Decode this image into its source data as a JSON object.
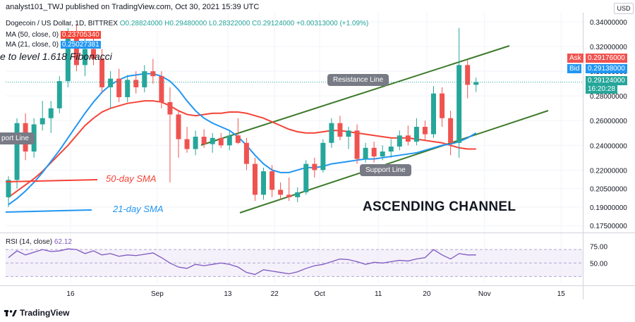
{
  "header": {
    "publisher": "analyst101_TWJ published on TradingView.com, Oct 30, 2021 15:39 UTC",
    "currency_button": "USD"
  },
  "symbol_line": {
    "name": "Dogecoin / US Dollar, 1D, BITTREX",
    "open": "O0.28824000",
    "high": "H0.29480000",
    "low": "L0.28322000",
    "close": "C0.29124000",
    "change": "+0.00313000 (+1.09%)"
  },
  "indicators": {
    "ma50": {
      "label": "MA (50, close, 0)",
      "value": "0.23705340",
      "color": "#f44336"
    },
    "ma21": {
      "label": "MA (21, close, 0)",
      "value": "0.25027381",
      "color": "#2196f3"
    },
    "rsi": {
      "label": "RSI (14, close)",
      "value": "62.12",
      "color": "#7e57c2"
    }
  },
  "price_tags": {
    "ask_label": "Ask",
    "ask_value": "0.29176000",
    "bid_label": "Bid",
    "bid_value": "0.29138000",
    "last_value": "0.29124000",
    "countdown": "16:20:28"
  },
  "annotations": {
    "fib_text": "e to level 1.618 Fibonacci",
    "resistance": "Resistance Line",
    "support_left": "port Line",
    "support": "Support Line",
    "sma50": "50-day SMA",
    "sma21": "21-day SMA",
    "channel": "ASCENDING CHANNEL"
  },
  "brand": {
    "logo_text": "TradingView"
  },
  "colors": {
    "up": "#26a69a",
    "down": "#ef5350",
    "channel": "#3d7a2a",
    "rsi": "#7e57c2",
    "sma50": "#f44336",
    "sma21": "#2196f3"
  },
  "chart_data": {
    "type": "candlestick",
    "price_axis_ticks": [
      "0.34000000",
      "0.32000000",
      "0.30000000",
      "0.28000000",
      "0.26000000",
      "0.24000000",
      "0.22000000",
      "0.20500000",
      "0.19000000",
      "0.17500000"
    ],
    "rsi_axis_ticks": [
      "75.00",
      "50.00"
    ],
    "x_axis_ticks": [
      "16",
      "Sep",
      "13",
      "22",
      "Oct",
      "11",
      "20",
      "Nov",
      "15"
    ],
    "candles": [
      {
        "o": 0.198,
        "h": 0.215,
        "l": 0.19,
        "c": 0.212
      },
      {
        "o": 0.212,
        "h": 0.262,
        "l": 0.205,
        "c": 0.258
      },
      {
        "o": 0.258,
        "h": 0.266,
        "l": 0.228,
        "c": 0.235
      },
      {
        "o": 0.235,
        "h": 0.262,
        "l": 0.23,
        "c": 0.257
      },
      {
        "o": 0.257,
        "h": 0.276,
        "l": 0.252,
        "c": 0.262
      },
      {
        "o": 0.262,
        "h": 0.276,
        "l": 0.25,
        "c": 0.27
      },
      {
        "o": 0.27,
        "h": 0.296,
        "l": 0.266,
        "c": 0.292
      },
      {
        "o": 0.292,
        "h": 0.335,
        "l": 0.287,
        "c": 0.327
      },
      {
        "o": 0.327,
        "h": 0.338,
        "l": 0.3,
        "c": 0.305
      },
      {
        "o": 0.305,
        "h": 0.332,
        "l": 0.296,
        "c": 0.318
      },
      {
        "o": 0.318,
        "h": 0.329,
        "l": 0.305,
        "c": 0.31
      },
      {
        "o": 0.31,
        "h": 0.318,
        "l": 0.282,
        "c": 0.287
      },
      {
        "o": 0.287,
        "h": 0.3,
        "l": 0.27,
        "c": 0.294
      },
      {
        "o": 0.294,
        "h": 0.302,
        "l": 0.275,
        "c": 0.279
      },
      {
        "o": 0.279,
        "h": 0.297,
        "l": 0.275,
        "c": 0.293
      },
      {
        "o": 0.293,
        "h": 0.3,
        "l": 0.282,
        "c": 0.287
      },
      {
        "o": 0.287,
        "h": 0.305,
        "l": 0.283,
        "c": 0.3
      },
      {
        "o": 0.3,
        "h": 0.31,
        "l": 0.29,
        "c": 0.296
      },
      {
        "o": 0.296,
        "h": 0.3,
        "l": 0.27,
        "c": 0.275
      },
      {
        "o": 0.275,
        "h": 0.287,
        "l": 0.21,
        "c": 0.265
      },
      {
        "o": 0.265,
        "h": 0.268,
        "l": 0.23,
        "c": 0.245
      },
      {
        "o": 0.245,
        "h": 0.255,
        "l": 0.234,
        "c": 0.237
      },
      {
        "o": 0.237,
        "h": 0.252,
        "l": 0.232,
        "c": 0.247
      },
      {
        "o": 0.247,
        "h": 0.253,
        "l": 0.238,
        "c": 0.241
      },
      {
        "o": 0.241,
        "h": 0.25,
        "l": 0.234,
        "c": 0.246
      },
      {
        "o": 0.246,
        "h": 0.25,
        "l": 0.238,
        "c": 0.24
      },
      {
        "o": 0.24,
        "h": 0.252,
        "l": 0.236,
        "c": 0.248
      },
      {
        "o": 0.248,
        "h": 0.262,
        "l": 0.241,
        "c": 0.242
      },
      {
        "o": 0.242,
        "h": 0.246,
        "l": 0.22,
        "c": 0.225
      },
      {
        "o": 0.225,
        "h": 0.23,
        "l": 0.195,
        "c": 0.2
      },
      {
        "o": 0.2,
        "h": 0.222,
        "l": 0.196,
        "c": 0.219
      },
      {
        "o": 0.219,
        "h": 0.224,
        "l": 0.198,
        "c": 0.204
      },
      {
        "o": 0.204,
        "h": 0.21,
        "l": 0.196,
        "c": 0.2
      },
      {
        "o": 0.2,
        "h": 0.214,
        "l": 0.195,
        "c": 0.198
      },
      {
        "o": 0.198,
        "h": 0.206,
        "l": 0.194,
        "c": 0.202
      },
      {
        "o": 0.202,
        "h": 0.228,
        "l": 0.2,
        "c": 0.225
      },
      {
        "o": 0.225,
        "h": 0.23,
        "l": 0.214,
        "c": 0.22
      },
      {
        "o": 0.22,
        "h": 0.245,
        "l": 0.218,
        "c": 0.242
      },
      {
        "o": 0.242,
        "h": 0.262,
        "l": 0.238,
        "c": 0.258
      },
      {
        "o": 0.258,
        "h": 0.264,
        "l": 0.244,
        "c": 0.247
      },
      {
        "o": 0.247,
        "h": 0.255,
        "l": 0.237,
        "c": 0.252
      },
      {
        "o": 0.252,
        "h": 0.257,
        "l": 0.225,
        "c": 0.229
      },
      {
        "o": 0.229,
        "h": 0.242,
        "l": 0.226,
        "c": 0.238
      },
      {
        "o": 0.238,
        "h": 0.243,
        "l": 0.226,
        "c": 0.231
      },
      {
        "o": 0.231,
        "h": 0.24,
        "l": 0.228,
        "c": 0.235
      },
      {
        "o": 0.235,
        "h": 0.245,
        "l": 0.23,
        "c": 0.239
      },
      {
        "o": 0.239,
        "h": 0.252,
        "l": 0.236,
        "c": 0.248
      },
      {
        "o": 0.248,
        "h": 0.256,
        "l": 0.24,
        "c": 0.243
      },
      {
        "o": 0.243,
        "h": 0.262,
        "l": 0.24,
        "c": 0.255
      },
      {
        "o": 0.255,
        "h": 0.26,
        "l": 0.244,
        "c": 0.249
      },
      {
        "o": 0.249,
        "h": 0.288,
        "l": 0.246,
        "c": 0.282
      },
      {
        "o": 0.282,
        "h": 0.287,
        "l": 0.255,
        "c": 0.262
      },
      {
        "o": 0.262,
        "h": 0.268,
        "l": 0.232,
        "c": 0.242
      },
      {
        "o": 0.242,
        "h": 0.335,
        "l": 0.23,
        "c": 0.305
      },
      {
        "o": 0.305,
        "h": 0.309,
        "l": 0.278,
        "c": 0.289
      },
      {
        "o": 0.289,
        "h": 0.2948,
        "l": 0.28322,
        "c": 0.29124
      }
    ],
    "ma50": [
      0.198,
      0.203,
      0.208,
      0.213,
      0.219,
      0.226,
      0.233,
      0.24,
      0.248,
      0.256,
      0.262,
      0.267,
      0.27,
      0.272,
      0.274,
      0.275,
      0.276,
      0.276,
      0.275,
      0.272,
      0.268,
      0.265,
      0.264,
      0.265,
      0.266,
      0.266,
      0.267,
      0.267,
      0.266,
      0.264,
      0.262,
      0.259,
      0.256,
      0.253,
      0.251,
      0.25,
      0.25,
      0.251,
      0.252,
      0.252,
      0.251,
      0.25,
      0.249,
      0.248,
      0.247,
      0.246,
      0.246,
      0.246,
      0.245,
      0.244,
      0.243,
      0.242,
      0.24,
      0.238,
      0.237,
      0.237
    ],
    "ma21": [
      0.192,
      0.197,
      0.203,
      0.21,
      0.218,
      0.227,
      0.236,
      0.246,
      0.256,
      0.266,
      0.275,
      0.283,
      0.289,
      0.293,
      0.296,
      0.297,
      0.298,
      0.298,
      0.296,
      0.292,
      0.285,
      0.276,
      0.268,
      0.262,
      0.258,
      0.255,
      0.252,
      0.247,
      0.24,
      0.232,
      0.225,
      0.22,
      0.218,
      0.218,
      0.22,
      0.222,
      0.222,
      0.223,
      0.225,
      0.226,
      0.227,
      0.228,
      0.229,
      0.229,
      0.23,
      0.231,
      0.232,
      0.233,
      0.234,
      0.236,
      0.238,
      0.24,
      0.241,
      0.243,
      0.246,
      0.25
    ],
    "rsi": [
      58,
      68,
      62,
      66,
      70,
      67,
      68,
      71,
      70,
      64,
      68,
      62,
      64,
      60,
      62,
      61,
      63,
      65,
      58,
      50,
      44,
      42,
      48,
      46,
      48,
      50,
      48,
      44,
      36,
      33,
      40,
      38,
      36,
      34,
      37,
      42,
      46,
      48,
      52,
      56,
      55,
      52,
      48,
      51,
      50,
      52,
      54,
      53,
      56,
      58,
      70,
      62,
      56,
      64,
      62,
      62
    ]
  }
}
